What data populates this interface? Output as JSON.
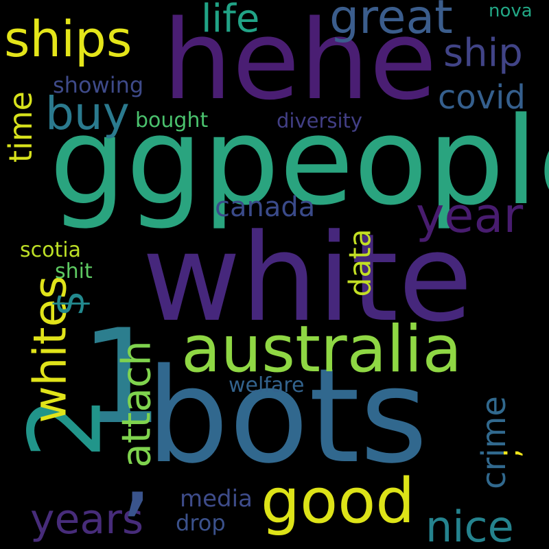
{
  "background": "#000000",
  "palette": {
    "purple": "#482374",
    "indigo": "#3b528b",
    "blue": "#31688e",
    "teal": "#21918c",
    "green": "#35b779",
    "lime": "#90d743",
    "yellow": "#e2e418"
  },
  "words": [
    {
      "id": "white",
      "text": "white",
      "color": "#46277c"
    },
    {
      "id": "ggpeople",
      "text": "ggpeople",
      "color": "#2aa47f"
    },
    {
      "id": "hehe",
      "text": "hehe",
      "color": "#4a1e73"
    },
    {
      "id": "bots",
      "text": "bots",
      "color": "#31688e"
    },
    {
      "id": "1",
      "text": "1",
      "color": "#2c7e8e"
    },
    {
      "id": "2",
      "text": "2",
      "color": "#21958a"
    },
    {
      "id": "australia",
      "text": "australia",
      "color": "#8fd744"
    },
    {
      "id": "good",
      "text": "good",
      "color": "#dde318"
    },
    {
      "id": "whites",
      "text": "whites",
      "color": "#e0e31a"
    },
    {
      "id": "ships",
      "text": "ships",
      "color": "#e4e51a"
    },
    {
      "id": "great",
      "text": "great",
      "color": "#3b5d8c"
    },
    {
      "id": "buy",
      "text": "buy",
      "color": "#2b7a8e"
    },
    {
      "id": "year",
      "text": "year",
      "color": "#481c6f"
    },
    {
      "id": "ship",
      "text": "ship",
      "color": "#414487"
    },
    {
      "id": "life",
      "text": "life",
      "color": "#21a386"
    },
    {
      "id": "time",
      "text": "time",
      "color": "#d7e21c"
    },
    {
      "id": "covid",
      "text": "covid",
      "color": "#355f8d"
    },
    {
      "id": "canada",
      "text": "canada",
      "color": "#3a4a89"
    },
    {
      "id": "data",
      "text": "data",
      "color": "#c3df24"
    },
    {
      "id": "attach",
      "text": "attach",
      "color": "#7fd34e"
    },
    {
      "id": "crime",
      "text": "crime",
      "color": "#31698e"
    },
    {
      "id": "years",
      "text": "years",
      "color": "#472c7a"
    },
    {
      "id": "nice",
      "text": "nice",
      "color": "#25838e"
    },
    {
      "id": "dollar",
      "text": "$",
      "color": "#23898e"
    },
    {
      "id": "comma",
      "text": ",",
      "color": "#3a548c"
    },
    {
      "id": "semicolon",
      "text": ";",
      "color": "#f0e51c"
    },
    {
      "id": "media",
      "text": "media",
      "color": "#3e4c8a"
    },
    {
      "id": "drop",
      "text": "drop",
      "color": "#3b518b"
    },
    {
      "id": "welfare",
      "text": "welfare",
      "color": "#33638d"
    },
    {
      "id": "scotia",
      "text": "scotia",
      "color": "#bddf26"
    },
    {
      "id": "shit",
      "text": "shit",
      "color": "#5ec962"
    },
    {
      "id": "showing",
      "text": "showing",
      "color": "#3e4a89"
    },
    {
      "id": "bought",
      "text": "bought",
      "color": "#4ac16d"
    },
    {
      "id": "diversity",
      "text": "diversity",
      "color": "#423f85"
    },
    {
      "id": "nova",
      "text": "nova",
      "color": "#22a785"
    }
  ]
}
